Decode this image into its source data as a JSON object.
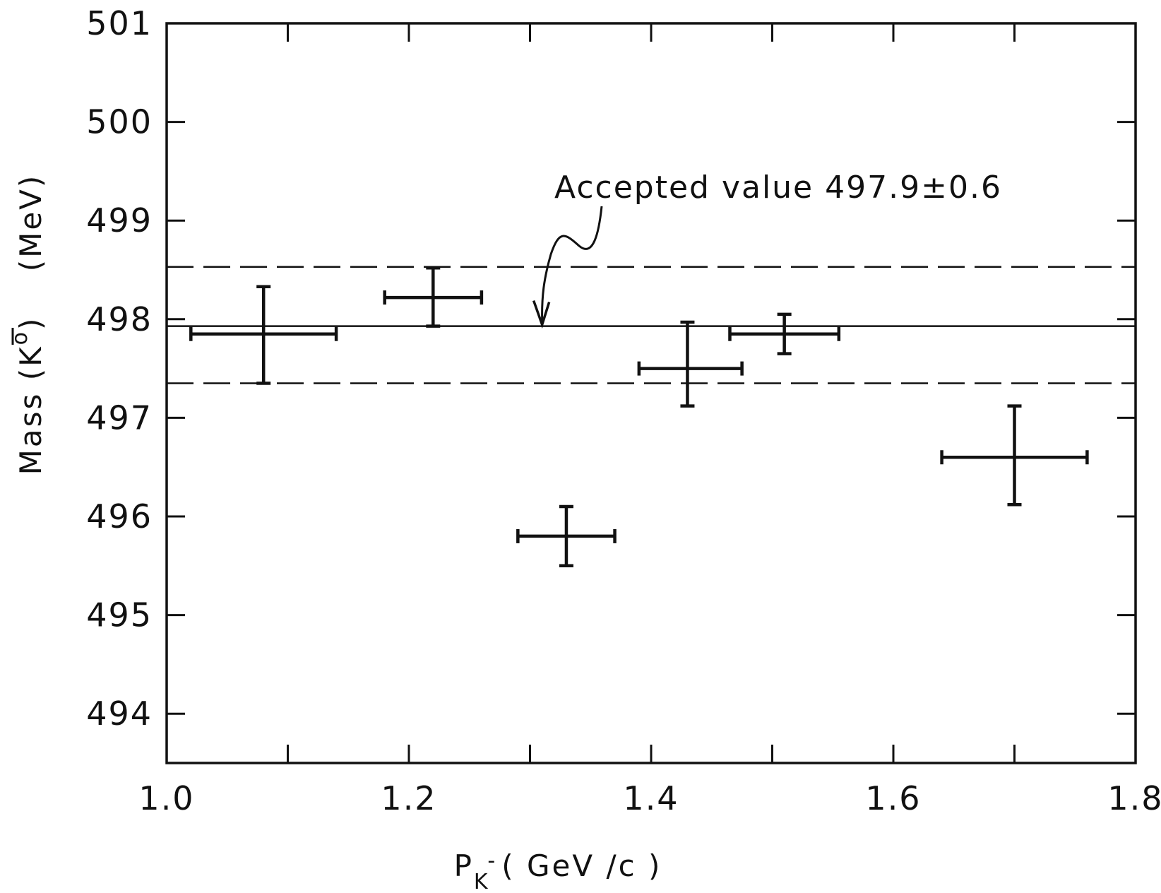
{
  "chart_data": {
    "type": "scatter",
    "title": "",
    "xlabel": {
      "main": "P",
      "sub": "K",
      "sup": "-",
      "rest": "( GeV /c )"
    },
    "ylabel": {
      "main": "Mass (K",
      "bar_letter": "K",
      "sup": "o",
      "close": ")",
      "unit": "(MeV)"
    },
    "xlim": [
      1.0,
      1.8
    ],
    "ylim": [
      493.5,
      501
    ],
    "x_ticks": [
      1.0,
      1.2,
      1.4,
      1.6,
      1.8
    ],
    "x_tick_labels": [
      "1.0",
      "1.2",
      "1.4",
      "1.6",
      "1.8"
    ],
    "x_minor_ticks": [
      1.1,
      1.3,
      1.5,
      1.7
    ],
    "y_ticks": [
      494,
      495,
      496,
      497,
      498,
      499,
      500,
      501
    ],
    "y_tick_labels": [
      "494",
      "495",
      "496",
      "497",
      "498",
      "499",
      "500",
      "501"
    ],
    "grid": false,
    "legend": "none",
    "points": [
      {
        "x": 1.08,
        "x_err": [
          1.02,
          1.14
        ],
        "y": 497.85,
        "y_err": [
          497.35,
          498.33
        ]
      },
      {
        "x": 1.22,
        "x_err": [
          1.18,
          1.26
        ],
        "y": 498.22,
        "y_err": [
          497.93,
          498.52
        ]
      },
      {
        "x": 1.33,
        "x_err": [
          1.29,
          1.37
        ],
        "y": 495.8,
        "y_err": [
          495.5,
          496.1
        ]
      },
      {
        "x": 1.43,
        "x_err": [
          1.39,
          1.475
        ],
        "y": 497.5,
        "y_err": [
          497.12,
          497.97
        ]
      },
      {
        "x": 1.51,
        "x_err": [
          1.465,
          1.555
        ],
        "y": 497.85,
        "y_err": [
          497.65,
          498.05
        ]
      },
      {
        "x": 1.7,
        "x_err": [
          1.64,
          1.76
        ],
        "y": 496.6,
        "y_err": [
          496.12,
          497.12
        ]
      }
    ],
    "reference_lines": [
      {
        "y": 497.93,
        "style": "solid"
      },
      {
        "y": 498.53,
        "style": "dashed"
      },
      {
        "y": 497.35,
        "style": "dashed"
      }
    ],
    "annotation": {
      "text": "Accepted value  497.9",
      "pm": "±0.6",
      "x": 1.31,
      "y": 498.6,
      "arrow_to": {
        "x": 1.31,
        "y": 497.93
      }
    },
    "colors": {
      "ink": "#111111",
      "background": "#ffffff"
    }
  }
}
